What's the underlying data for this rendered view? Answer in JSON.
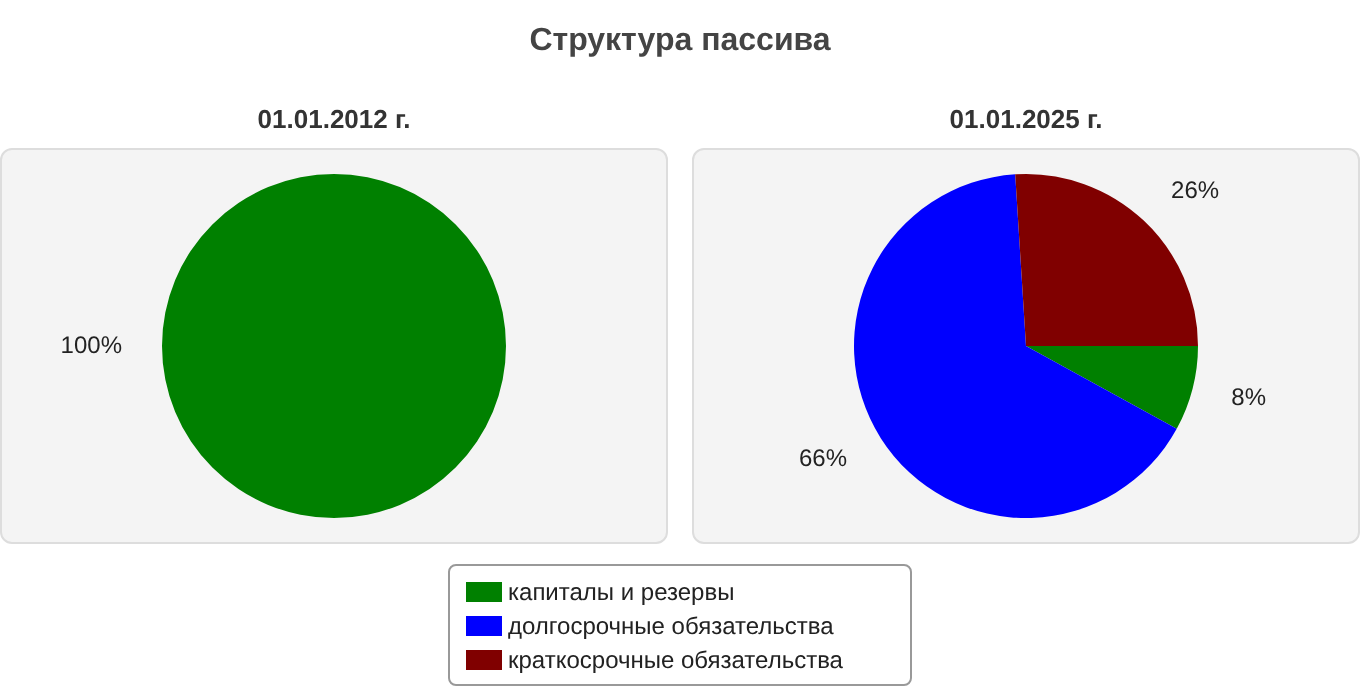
{
  "chart_data": [
    {
      "type": "pie",
      "title": "Структура пассива",
      "subtitle": "01.01.2012 г.",
      "categories": [
        null
      ],
      "values": [
        100
      ],
      "colors": [
        "#008000"
      ],
      "value_labels": [
        "100%"
      ]
    },
    {
      "type": "pie",
      "subtitle": "01.01.2025 г.",
      "categories": [
        "капиталы и резервы",
        "долгосрочные обязательства",
        "краткосрочные обязательства"
      ],
      "values": [
        8,
        66,
        26
      ],
      "colors": [
        "#008000",
        "#0000ff",
        "#800000"
      ],
      "value_labels": [
        "8%",
        "66%",
        "26%"
      ],
      "legend": "bottom"
    }
  ]
}
